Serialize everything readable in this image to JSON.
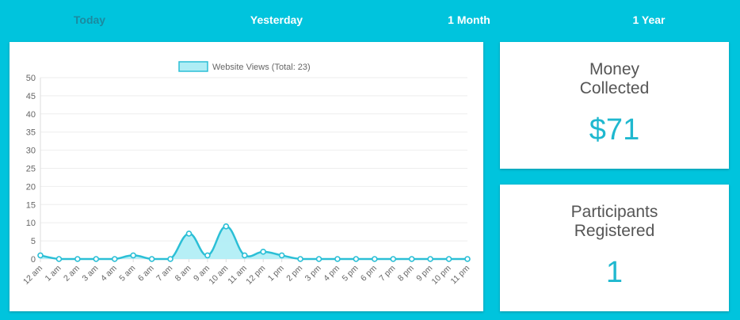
{
  "tabs": [
    {
      "label": "Today",
      "active": true
    },
    {
      "label": "Yesterday",
      "active": false
    },
    {
      "label": "1 Month",
      "active": false
    },
    {
      "label": "1 Year",
      "active": false
    }
  ],
  "money": {
    "label_line1": "Money",
    "label_line2": "Collected",
    "value": "$71"
  },
  "participants": {
    "label_line1": "Participants",
    "label_line2": "Registered",
    "value": "1"
  },
  "colors": {
    "accent": "#00c4dd",
    "line": "#2bbfd6",
    "fill": "#aeedf5",
    "tab_active": "#1b8aa0"
  },
  "chart_data": {
    "type": "line",
    "legend": "Website Views (Total: 23)",
    "categories": [
      "12 am",
      "1 am",
      "2 am",
      "3 am",
      "4 am",
      "5 am",
      "6 am",
      "7 am",
      "8 am",
      "9 am",
      "10 am",
      "11 am",
      "12 pm",
      "1 pm",
      "2 pm",
      "3 pm",
      "4 pm",
      "5 pm",
      "6 pm",
      "7 pm",
      "8 pm",
      "9 pm",
      "10 pm",
      "11 pm"
    ],
    "series": [
      {
        "name": "Website Views",
        "values": [
          1,
          0,
          0,
          0,
          0,
          1,
          0,
          0,
          7,
          1,
          9,
          1,
          2,
          1,
          0,
          0,
          0,
          0,
          0,
          0,
          0,
          0,
          0,
          0
        ]
      }
    ],
    "yticks": [
      0,
      5,
      10,
      15,
      20,
      25,
      30,
      35,
      40,
      45,
      50
    ],
    "ylim": [
      0,
      50
    ]
  }
}
